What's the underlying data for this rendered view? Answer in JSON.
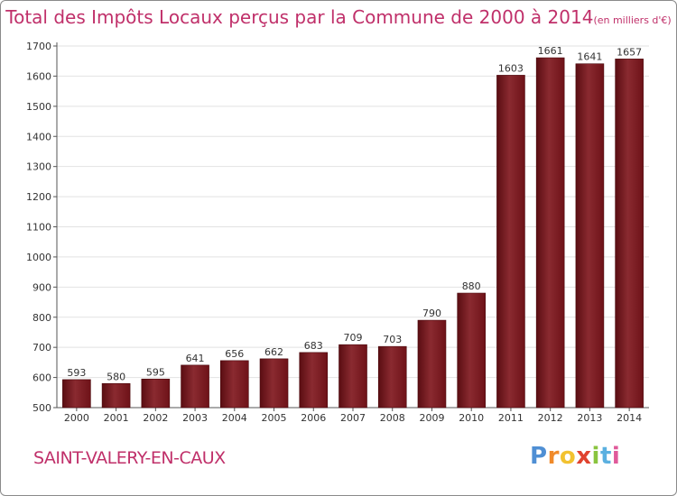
{
  "title": "Total des Impôts Locaux perçus par la Commune de 2000 à 2014",
  "unit": "(en milliers d'€)",
  "commune": "SAINT-VALERY-EN-CAUX",
  "logo": {
    "letters": [
      "P",
      "r",
      "o",
      "x",
      "i",
      "t",
      "i"
    ],
    "colors": [
      "#4f8fd4",
      "#f08a2a",
      "#f2c230",
      "#e0432f",
      "#8ac43f",
      "#5bb0e0",
      "#e05a9a"
    ]
  },
  "colors": {
    "bar": "#6e1218",
    "bar_highlight": "#8a2a30",
    "title": "#c0306a"
  },
  "chart_data": {
    "type": "bar",
    "title": "Total des Impôts Locaux perçus par la Commune de 2000 à 2014",
    "xlabel": "",
    "ylabel": "en milliers d'€",
    "categories": [
      "2000",
      "2001",
      "2002",
      "2003",
      "2004",
      "2005",
      "2006",
      "2007",
      "2008",
      "2009",
      "2010",
      "2011",
      "2012",
      "2013",
      "2014"
    ],
    "values": [
      593,
      580,
      595,
      641,
      656,
      662,
      683,
      709,
      703,
      790,
      880,
      1603,
      1661,
      1641,
      1657
    ],
    "ylim": [
      500,
      1700
    ],
    "yticks": [
      500,
      600,
      700,
      800,
      900,
      1000,
      1100,
      1200,
      1300,
      1400,
      1500,
      1600,
      1700
    ],
    "grid": true
  }
}
